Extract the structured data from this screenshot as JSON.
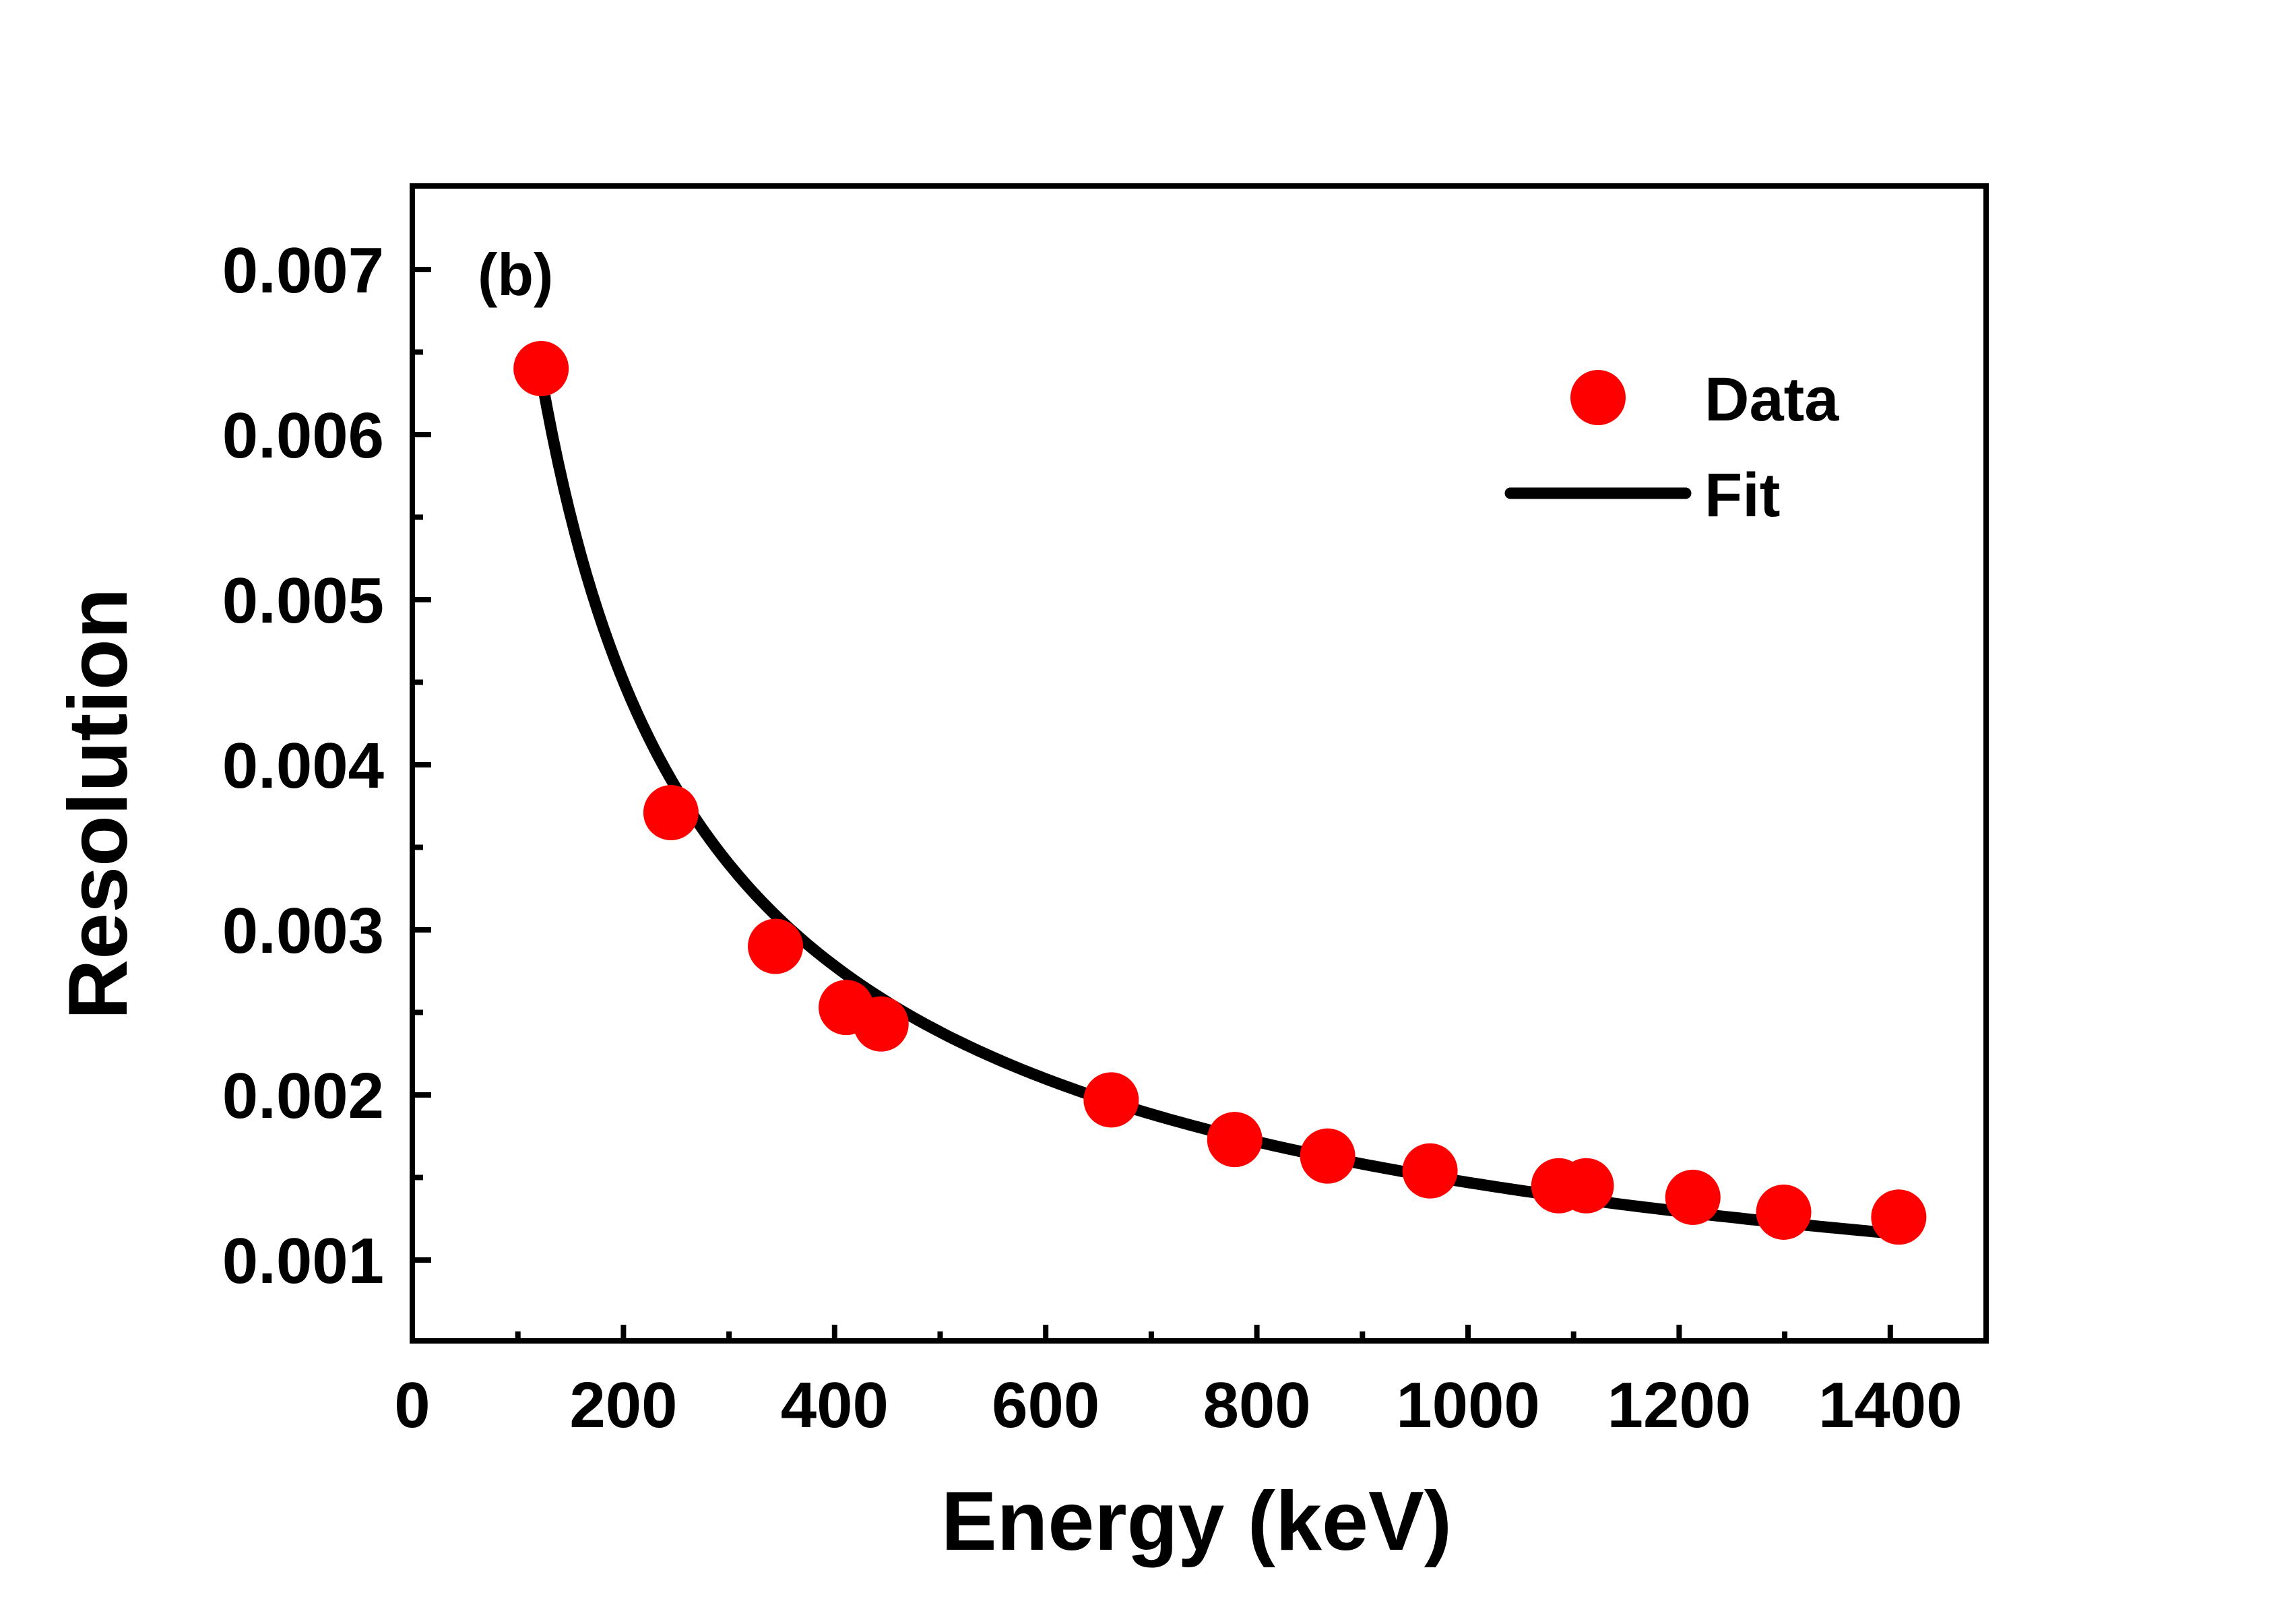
{
  "chart_data": {
    "type": "scatter",
    "panel_label": "(b)",
    "xlabel": "Energy (keV)",
    "ylabel": "Resolution",
    "xlim": [
      0,
      1490
    ],
    "ylim": [
      0.0005,
      0.0075
    ],
    "x_ticks": [
      0,
      200,
      400,
      600,
      800,
      1000,
      1200,
      1400
    ],
    "x_tick_labels": [
      "0",
      "200",
      "400",
      "600",
      "800",
      "1000",
      "1200",
      "1400"
    ],
    "x_minor_ticks": [
      100,
      300,
      500,
      700,
      900,
      1100,
      1300
    ],
    "y_ticks": [
      0.001,
      0.002,
      0.003,
      0.004,
      0.005,
      0.006,
      0.007
    ],
    "y_tick_labels": [
      "0.001",
      "0.002",
      "0.003",
      "0.004",
      "0.005",
      "0.006",
      "0.007"
    ],
    "y_minor_ticks": [
      0.0015,
      0.0025,
      0.0035,
      0.0045,
      0.0055,
      0.0065
    ],
    "series": [
      {
        "name": "Data",
        "kind": "scatter",
        "color": "#ff0000",
        "x": [
          122,
          245,
          344,
          411,
          444,
          662,
          779,
          867,
          964,
          1086,
          1112,
          1213,
          1299,
          1408
        ],
        "y": [
          0.0064,
          0.00371,
          0.0029,
          0.00253,
          0.00243,
          0.00197,
          0.00173,
          0.00163,
          0.00154,
          0.00145,
          0.00145,
          0.00138,
          0.00129,
          0.00126
        ]
      },
      {
        "name": "Fit",
        "kind": "line",
        "color": "#000000",
        "x_range": [
          122,
          1408
        ],
        "model": "a * x^b",
        "a": 0.18,
        "b": -0.696
      }
    ],
    "legend": {
      "position": "top-right",
      "entries": [
        "Data",
        "Fit"
      ]
    },
    "grid": false
  }
}
